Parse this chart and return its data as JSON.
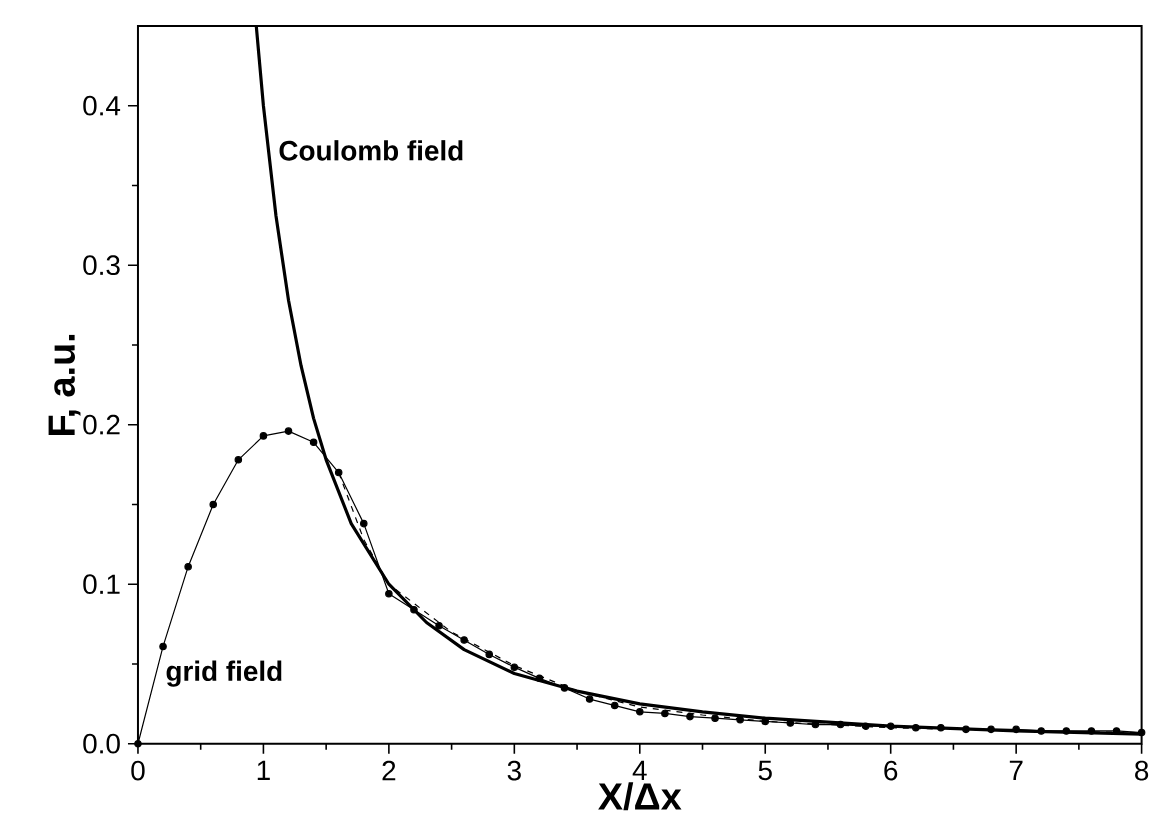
{
  "chart_data": {
    "type": "line",
    "xlabel": "X/Δx",
    "ylabel": "F, a.u.",
    "xlim": [
      0,
      8
    ],
    "ylim": [
      0,
      0.45
    ],
    "xticks": [
      0,
      1,
      2,
      3,
      4,
      5,
      6,
      7,
      8
    ],
    "yticks": [
      {
        "value": 0,
        "label": "0.0"
      },
      {
        "value": 0.1,
        "label": "0.1"
      },
      {
        "value": 0.2,
        "label": "0.2"
      },
      {
        "value": 0.3,
        "label": "0.3"
      },
      {
        "value": 0.4,
        "label": "0.4"
      }
    ],
    "grid": false,
    "series": [
      {
        "name": "Coulomb field",
        "color": "#000000",
        "marker": "none",
        "line_style": "solid",
        "x": [
          0.943,
          1.0,
          1.1,
          1.2,
          1.3,
          1.4,
          1.5,
          1.7,
          2.0,
          2.3,
          2.6,
          3.0,
          3.5,
          4.0,
          4.5,
          5.0,
          6.0,
          7.0,
          8.0
        ],
        "values": [
          0.45,
          0.4,
          0.331,
          0.278,
          0.237,
          0.204,
          0.178,
          0.138,
          0.1,
          0.076,
          0.059,
          0.044,
          0.033,
          0.025,
          0.02,
          0.016,
          0.011,
          0.008,
          0.006
        ]
      },
      {
        "name": "grid field",
        "color": "#000000",
        "marker": "circle",
        "line_style": "solid",
        "x": [
          0,
          0.2,
          0.4,
          0.6,
          0.8,
          1.0,
          1.2,
          1.4,
          1.6,
          1.8,
          2.0,
          2.2,
          2.4,
          2.6,
          2.8,
          3.0,
          3.2,
          3.4,
          3.6,
          3.8,
          4.0,
          4.2,
          4.4,
          4.6,
          4.8,
          5.0,
          5.2,
          5.4,
          5.6,
          5.8,
          6.0,
          6.2,
          6.4,
          6.6,
          6.8,
          7.0,
          7.2,
          7.4,
          7.6,
          7.8,
          8.0
        ],
        "values": [
          0,
          0.061,
          0.111,
          0.15,
          0.178,
          0.193,
          0.196,
          0.189,
          0.17,
          0.138,
          0.094,
          0.084,
          0.074,
          0.065,
          0.056,
          0.048,
          0.041,
          0.035,
          0.028,
          0.024,
          0.02,
          0.019,
          0.017,
          0.016,
          0.015,
          0.014,
          0.013,
          0.012,
          0.012,
          0.011,
          0.011,
          0.01,
          0.01,
          0.009,
          0.009,
          0.009,
          0.008,
          0.008,
          0.008,
          0.008,
          0.007
        ]
      },
      {
        "color": "#000000",
        "marker": "none",
        "line_style": "dashed",
        "x": [
          1.6,
          1.8,
          2.0,
          2.5,
          3.0,
          3.5,
          4.0,
          4.5,
          5.0,
          6.0,
          7.0,
          8.0
        ],
        "values": [
          0.17,
          0.128,
          0.1,
          0.07,
          0.049,
          0.033,
          0.023,
          0.018,
          0.014,
          0.01,
          0.008,
          0.007
        ]
      }
    ]
  }
}
